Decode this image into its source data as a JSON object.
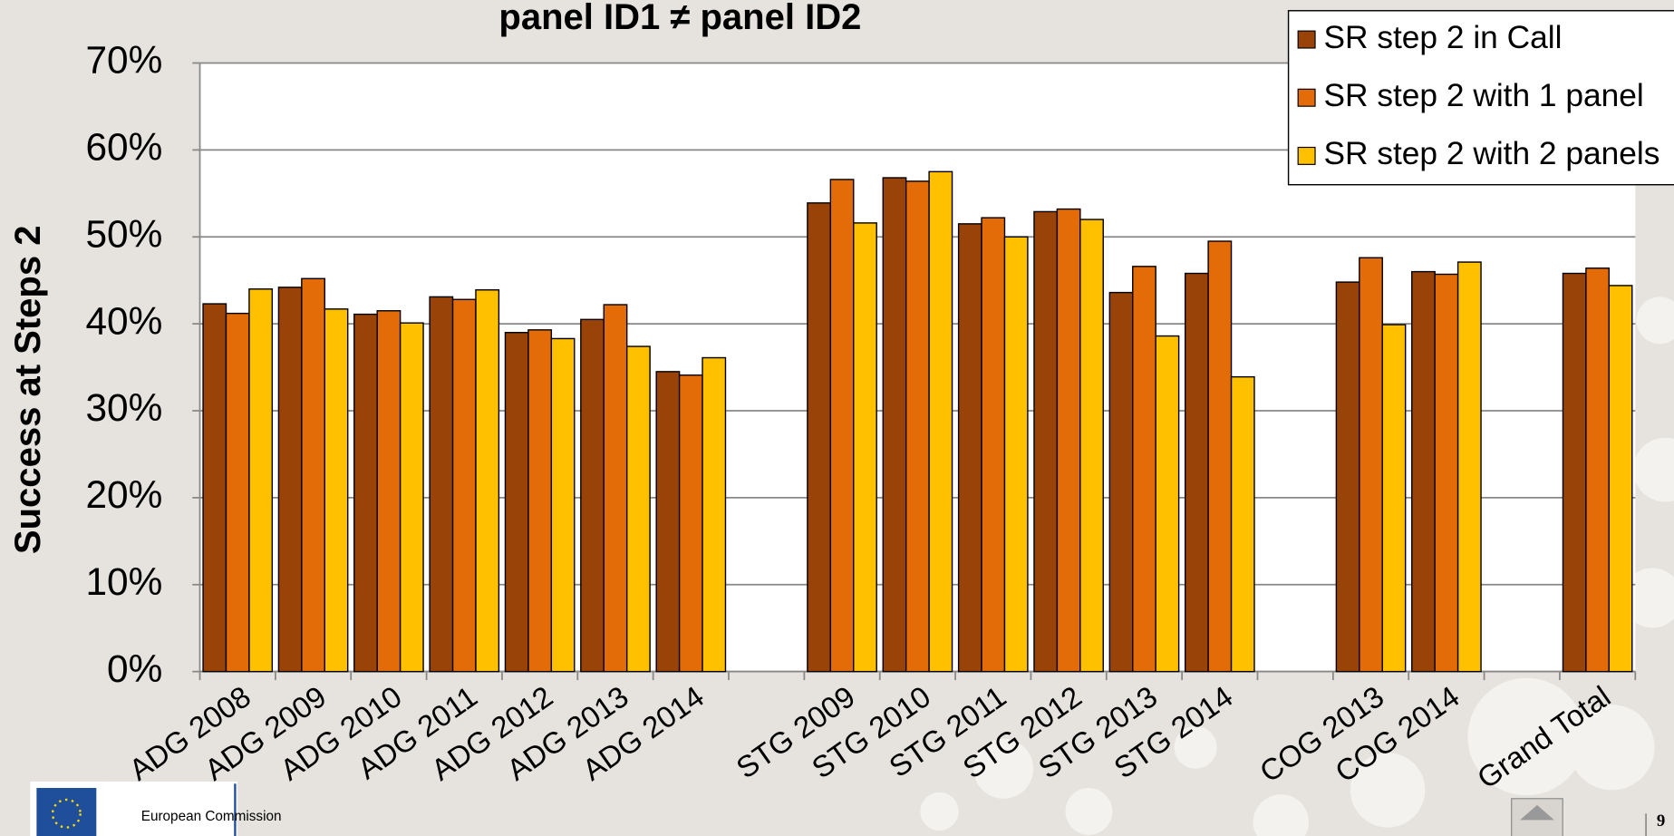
{
  "chart_data": {
    "type": "bar",
    "title": "panel ID1 ≠ panel ID2",
    "y_label": "Success at Steps 2",
    "categories": [
      "ADG 2008",
      "ADG 2009",
      "ADG 2010",
      "ADG 2011",
      "ADG 2012",
      "ADG 2013",
      "ADG 2014",
      null,
      "STG 2009",
      "STG 2010",
      "STG 2011",
      "STG 2012",
      "STG 2013",
      "STG 2014",
      null,
      "COG 2013",
      "COG 2014",
      null,
      "Grand Total"
    ],
    "series": [
      {
        "name": "SR step 2 in Call",
        "color": "#9a4308",
        "values": [
          42.3,
          44.2,
          41.1,
          43.1,
          39.0,
          40.5,
          34.5,
          null,
          53.9,
          56.8,
          51.5,
          52.9,
          43.6,
          45.8,
          null,
          44.8,
          46.0,
          null,
          45.8
        ]
      },
      {
        "name": "SR step 2 with 1 panel",
        "color": "#e36c09",
        "values": [
          41.2,
          45.2,
          41.5,
          42.8,
          39.3,
          42.2,
          34.1,
          null,
          56.6,
          56.4,
          52.2,
          53.2,
          46.6,
          49.5,
          null,
          47.6,
          45.7,
          null,
          46.4
        ]
      },
      {
        "name": "SR step 2 with 2 panels",
        "color": "#ffc000",
        "values": [
          44.0,
          41.7,
          40.1,
          43.9,
          38.3,
          37.4,
          36.1,
          null,
          51.6,
          57.5,
          50.0,
          52.0,
          38.6,
          33.9,
          null,
          39.9,
          47.1,
          null,
          44.4
        ]
      }
    ],
    "ylim": [
      0,
      70
    ],
    "yticks": [
      {
        "value": 0,
        "label": "0%"
      },
      {
        "value": 10,
        "label": "10%"
      },
      {
        "value": 20,
        "label": "20%"
      },
      {
        "value": 30,
        "label": "30%"
      },
      {
        "value": 40,
        "label": "40%"
      },
      {
        "value": 50,
        "label": "50%"
      },
      {
        "value": 60,
        "label": "60%"
      },
      {
        "value": 70,
        "label": "70%"
      }
    ],
    "grid": true,
    "legend": "top-right"
  },
  "footer": {
    "logo_text": "European Commission",
    "page_number": "9"
  }
}
